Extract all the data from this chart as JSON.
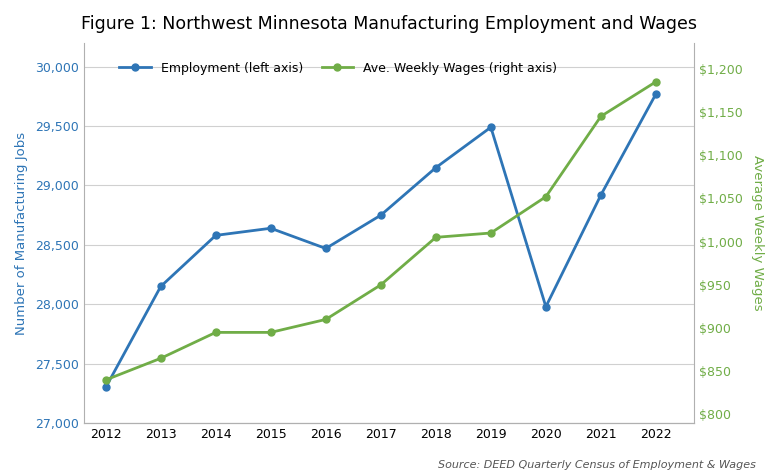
{
  "title": "Figure 1: Northwest Minnesota Manufacturing Employment and Wages",
  "years": [
    2012,
    2013,
    2014,
    2015,
    2016,
    2017,
    2018,
    2019,
    2020,
    2021,
    2022
  ],
  "employment": [
    27300,
    28150,
    28580,
    28640,
    28470,
    28750,
    29150,
    29490,
    27980,
    28920,
    29770
  ],
  "avg_weekly_wages": [
    840,
    865,
    895,
    895,
    910,
    950,
    1005,
    1010,
    1052,
    1145,
    1185
  ],
  "employment_color": "#2E75B6",
  "wages_color": "#70AD47",
  "ylabel_left": "Number of Manufacturing Jobs",
  "ylabel_right": "Average Weekly Wages",
  "source": "Source: DEED Quarterly Census of Employment & Wages",
  "left_ylim": [
    27000,
    30200
  ],
  "right_ylim": [
    790,
    1230
  ],
  "left_yticks": [
    27000,
    27500,
    28000,
    28500,
    29000,
    29500,
    30000
  ],
  "right_yticks": [
    800,
    850,
    900,
    950,
    1000,
    1050,
    1100,
    1150,
    1200
  ],
  "legend_employment": "Employment (left axis)",
  "legend_wages": "Ave. Weekly Wages (right axis)",
  "title_fontsize": 12.5,
  "axis_label_fontsize": 9.5,
  "tick_fontsize": 9,
  "legend_fontsize": 9,
  "plot_bg_color": "#f2f2f2",
  "outer_bg_color": "#ffffff"
}
